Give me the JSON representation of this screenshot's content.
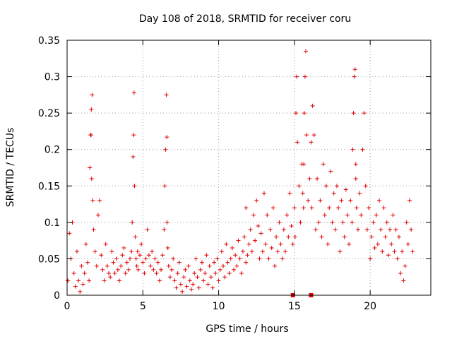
{
  "chart_data": {
    "type": "scatter",
    "title": "Day 108 of 2018, SRMTID for receiver coru",
    "xlabel": "GPS time / hours",
    "ylabel": "SRMTID / TECUs",
    "xlim": [
      0,
      24
    ],
    "ylim": [
      0,
      0.35
    ],
    "x_ticks": [
      0,
      5,
      10,
      15,
      20
    ],
    "y_ticks": [
      0,
      0.05,
      0.1,
      0.15,
      0.2,
      0.25,
      0.3,
      0.35
    ],
    "x_tick_labels": [
      "0",
      "5",
      "10",
      "15",
      "20"
    ],
    "y_tick_labels": [
      "0",
      "0.05",
      "0.1",
      "0.15",
      "0.2",
      "0.25",
      "0.3",
      "0.35"
    ],
    "grid": true,
    "marker": "+",
    "color": "#e00000",
    "series": [
      {
        "name": "SRMTID",
        "x": [
          0.05,
          0.15,
          0.25,
          0.35,
          0.45,
          0.55,
          0.65,
          0.75,
          0.85,
          0.95,
          1.05,
          1.15,
          1.25,
          1.35,
          1.45,
          1.5,
          1.55,
          1.6,
          1.65,
          1.7,
          1.75,
          1.85,
          1.95,
          2.05,
          2.15,
          2.25,
          2.35,
          2.45,
          2.55,
          2.65,
          2.75,
          2.85,
          2.95,
          3.05,
          3.15,
          3.25,
          3.35,
          3.45,
          3.55,
          3.65,
          3.75,
          3.85,
          3.95,
          4.05,
          4.15,
          4.25,
          4.3,
          4.35,
          4.4,
          4.45,
          4.5,
          4.55,
          4.6,
          4.65,
          4.7,
          4.8,
          4.9,
          5.0,
          5.1,
          5.2,
          5.3,
          5.4,
          5.5,
          5.6,
          5.7,
          5.8,
          5.9,
          6.0,
          6.1,
          6.2,
          6.3,
          6.4,
          6.45,
          6.5,
          6.55,
          6.6,
          6.65,
          6.7,
          6.8,
          6.9,
          7.0,
          7.1,
          7.2,
          7.3,
          7.4,
          7.5,
          7.6,
          7.7,
          7.8,
          7.9,
          8.0,
          8.1,
          8.2,
          8.3,
          8.4,
          8.5,
          8.6,
          8.7,
          8.8,
          8.9,
          9.0,
          9.1,
          9.2,
          9.3,
          9.4,
          9.5,
          9.6,
          9.7,
          9.8,
          9.9,
          10.0,
          10.1,
          10.2,
          10.3,
          10.4,
          10.5,
          10.6,
          10.7,
          10.8,
          10.9,
          11.0,
          11.1,
          11.2,
          11.3,
          11.4,
          11.5,
          11.6,
          11.7,
          11.8,
          11.9,
          12.0,
          12.1,
          12.2,
          12.3,
          12.4,
          12.5,
          12.6,
          12.7,
          12.8,
          12.9,
          13.0,
          13.1,
          13.2,
          13.3,
          13.4,
          13.5,
          13.6,
          13.7,
          13.8,
          13.9,
          14.0,
          14.1,
          14.2,
          14.3,
          14.4,
          14.5,
          14.6,
          14.7,
          14.8,
          14.9,
          15.0,
          15.05,
          15.1,
          15.15,
          15.2,
          15.3,
          15.4,
          15.5,
          15.55,
          15.6,
          15.65,
          15.7,
          15.75,
          15.8,
          15.9,
          16.0,
          16.1,
          16.15,
          16.2,
          16.3,
          16.4,
          16.5,
          16.6,
          16.7,
          16.8,
          16.9,
          17.0,
          17.1,
          17.2,
          17.3,
          17.4,
          17.5,
          17.6,
          17.7,
          17.8,
          17.9,
          18.0,
          18.1,
          18.2,
          18.3,
          18.4,
          18.5,
          18.6,
          18.7,
          18.8,
          18.85,
          18.9,
          18.95,
          19.0,
          19.05,
          19.1,
          19.2,
          19.3,
          19.4,
          19.5,
          19.6,
          19.7,
          19.8,
          19.9,
          20.0,
          20.1,
          20.2,
          20.3,
          20.4,
          20.5,
          20.6,
          20.7,
          20.8,
          20.9,
          21.0,
          21.1,
          21.2,
          21.3,
          21.4,
          21.5,
          21.6,
          21.7,
          21.8,
          21.9,
          22.0,
          22.1,
          22.2,
          22.3,
          22.4,
          22.5,
          22.6,
          22.7,
          22.8,
          1.58,
          1.62,
          4.42,
          6.58,
          11.8,
          15.62,
          19.05
        ],
        "y": [
          0.02,
          0.085,
          0.05,
          0.1,
          0.03,
          0.012,
          0.06,
          0.02,
          0.005,
          0.04,
          0.015,
          0.03,
          0.07,
          0.045,
          0.02,
          0.175,
          0.22,
          0.255,
          0.275,
          0.13,
          0.09,
          0.06,
          0.04,
          0.11,
          0.13,
          0.055,
          0.035,
          0.02,
          0.07,
          0.04,
          0.03,
          0.025,
          0.06,
          0.045,
          0.03,
          0.05,
          0.035,
          0.02,
          0.04,
          0.055,
          0.065,
          0.03,
          0.045,
          0.035,
          0.05,
          0.06,
          0.1,
          0.19,
          0.22,
          0.15,
          0.08,
          0.05,
          0.04,
          0.06,
          0.035,
          0.055,
          0.07,
          0.045,
          0.03,
          0.05,
          0.09,
          0.055,
          0.04,
          0.06,
          0.035,
          0.05,
          0.03,
          0.045,
          0.02,
          0.035,
          0.055,
          0.09,
          0.15,
          0.2,
          0.275,
          0.1,
          0.065,
          0.04,
          0.025,
          0.035,
          0.05,
          0.02,
          0.01,
          0.03,
          0.045,
          0.015,
          0.005,
          0.025,
          0.035,
          0.012,
          0.04,
          0.02,
          0.008,
          0.015,
          0.03,
          0.05,
          0.025,
          0.01,
          0.035,
          0.045,
          0.02,
          0.03,
          0.055,
          0.015,
          0.04,
          0.025,
          0.01,
          0.045,
          0.03,
          0.05,
          0.02,
          0.035,
          0.06,
          0.04,
          0.025,
          0.07,
          0.045,
          0.03,
          0.05,
          0.065,
          0.035,
          0.055,
          0.04,
          0.075,
          0.05,
          0.03,
          0.06,
          0.08,
          0.045,
          0.055,
          0.07,
          0.09,
          0.06,
          0.11,
          0.075,
          0.13,
          0.095,
          0.05,
          0.085,
          0.06,
          0.14,
          0.07,
          0.11,
          0.05,
          0.09,
          0.065,
          0.12,
          0.04,
          0.08,
          0.06,
          0.1,
          0.07,
          0.05,
          0.09,
          0.06,
          0.11,
          0.08,
          0.14,
          0.095,
          0.07,
          0.12,
          0.08,
          0.25,
          0.3,
          0.21,
          0.15,
          0.1,
          0.18,
          0.14,
          0.12,
          0.25,
          0.3,
          0.335,
          0.22,
          0.13,
          0.16,
          0.21,
          0.12,
          0.26,
          0.22,
          0.09,
          0.16,
          0.1,
          0.13,
          0.08,
          0.18,
          0.11,
          0.15,
          0.07,
          0.12,
          0.17,
          0.1,
          0.14,
          0.09,
          0.15,
          0.12,
          0.06,
          0.13,
          0.1,
          0.08,
          0.145,
          0.11,
          0.07,
          0.13,
          0.1,
          0.2,
          0.25,
          0.3,
          0.31,
          0.18,
          0.12,
          0.09,
          0.14,
          0.11,
          0.2,
          0.25,
          0.15,
          0.09,
          0.12,
          0.05,
          0.08,
          0.1,
          0.065,
          0.11,
          0.07,
          0.13,
          0.09,
          0.06,
          0.12,
          0.08,
          0.1,
          0.055,
          0.09,
          0.07,
          0.11,
          0.06,
          0.09,
          0.05,
          0.08,
          0.03,
          0.06,
          0.02,
          0.04,
          0.1,
          0.07,
          0.13,
          0.09,
          0.06,
          0.22,
          0.16,
          0.278,
          0.217,
          0.12,
          0.18,
          0.16
        ]
      }
    ],
    "flat_markers": {
      "x": [
        14.9,
        16.1
      ],
      "y": [
        0,
        0
      ]
    }
  }
}
